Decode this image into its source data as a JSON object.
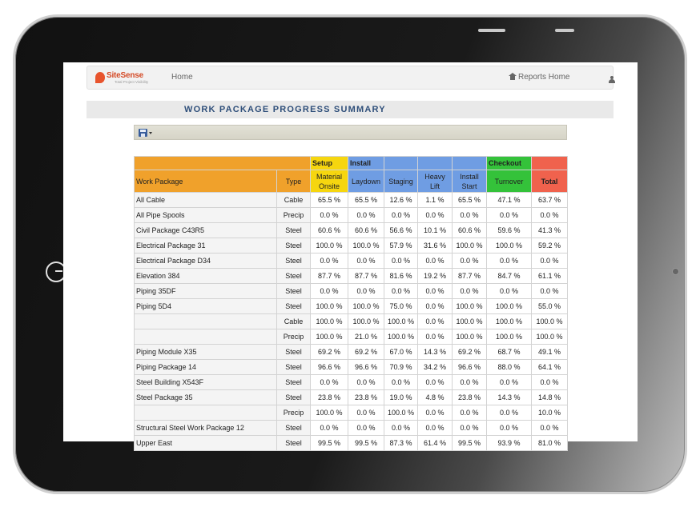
{
  "app": {
    "logo_text": "SiteSense",
    "logo_tagline": "Total Project Visibility",
    "nav_home": "Home",
    "nav_reports_home": "Reports Home"
  },
  "page": {
    "title": "WORK PACKAGE PROGRESS SUMMARY"
  },
  "toolbar": {
    "icons": [
      "save-icon",
      "chevron-down-icon"
    ]
  },
  "table": {
    "group_headers": {
      "setup": "Setup",
      "install": "Install",
      "checkout": "Checkout"
    },
    "columns": {
      "work_package": "Work Package",
      "type": "Type",
      "material_onsite": "Material Onsite",
      "laydown": "Laydown",
      "staging": "Staging",
      "heavy_lift": "Heavy Lift",
      "install_start": "Install Start",
      "turnover": "Turnover",
      "total": "Total"
    },
    "colors": {
      "orange": "#f0a12b",
      "yellow": "#f6d60f",
      "blue": "#6f9de3",
      "green": "#34c23a",
      "red": "#f0624d"
    },
    "rows": [
      {
        "name": "All Cable",
        "type": "Cable",
        "values": [
          "65.5 %",
          "65.5 %",
          "12.6 %",
          "1.1 %",
          "65.5 %",
          "47.1 %",
          "63.7 %"
        ]
      },
      {
        "name": "All Pipe Spools",
        "type": "Precip",
        "values": [
          "0.0 %",
          "0.0 %",
          "0.0 %",
          "0.0 %",
          "0.0 %",
          "0.0 %",
          "0.0 %"
        ]
      },
      {
        "name": "Civil Package C43R5",
        "type": "Steel",
        "values": [
          "60.6 %",
          "60.6 %",
          "56.6 %",
          "10.1 %",
          "60.6 %",
          "59.6 %",
          "41.3 %"
        ]
      },
      {
        "name": "Electrical Package 31",
        "type": "Steel",
        "values": [
          "100.0 %",
          "100.0 %",
          "57.9 %",
          "31.6 %",
          "100.0 %",
          "100.0 %",
          "59.2 %"
        ]
      },
      {
        "name": "Electrical Package D34",
        "type": "Steel",
        "values": [
          "0.0 %",
          "0.0 %",
          "0.0 %",
          "0.0 %",
          "0.0 %",
          "0.0 %",
          "0.0 %"
        ]
      },
      {
        "name": "Elevation 384",
        "type": "Steel",
        "values": [
          "87.7 %",
          "87.7 %",
          "81.6 %",
          "19.2 %",
          "87.7 %",
          "84.7 %",
          "61.1 %"
        ]
      },
      {
        "name": "Piping 35DF",
        "type": "Steel",
        "values": [
          "0.0 %",
          "0.0 %",
          "0.0 %",
          "0.0 %",
          "0.0 %",
          "0.0 %",
          "0.0 %"
        ]
      },
      {
        "name": "Piping 5D4",
        "type": "Steel",
        "values": [
          "100.0 %",
          "100.0 %",
          "75.0 %",
          "0.0 %",
          "100.0 %",
          "100.0 %",
          "55.0 %"
        ]
      },
      {
        "name": "",
        "type": "Cable",
        "values": [
          "100.0 %",
          "100.0 %",
          "100.0 %",
          "0.0 %",
          "100.0 %",
          "100.0 %",
          "100.0 %"
        ]
      },
      {
        "name": "",
        "type": "Precip",
        "values": [
          "100.0 %",
          "21.0 %",
          "100.0 %",
          "0.0 %",
          "100.0 %",
          "100.0 %",
          "100.0 %"
        ]
      },
      {
        "name": "Piping Module X35",
        "type": "Steel",
        "values": [
          "69.2 %",
          "69.2 %",
          "67.0 %",
          "14.3 %",
          "69.2 %",
          "68.7 %",
          "49.1 %"
        ]
      },
      {
        "name": "Piping Package 14",
        "type": "Steel",
        "values": [
          "96.6 %",
          "96.6 %",
          "70.9 %",
          "34.2 %",
          "96.6 %",
          "88.0 %",
          "64.1 %"
        ]
      },
      {
        "name": "Steel Building X543F",
        "type": "Steel",
        "values": [
          "0.0 %",
          "0.0 %",
          "0.0 %",
          "0.0 %",
          "0.0 %",
          "0.0 %",
          "0.0 %"
        ]
      },
      {
        "name": "Steel Package 35",
        "type": "Steel",
        "values": [
          "23.8 %",
          "23.8 %",
          "19.0 %",
          "4.8 %",
          "23.8 %",
          "14.3 %",
          "14.8 %"
        ]
      },
      {
        "name": "",
        "type": "Precip",
        "values": [
          "100.0 %",
          "0.0 %",
          "100.0 %",
          "0.0 %",
          "0.0 %",
          "0.0 %",
          "10.0 %"
        ]
      },
      {
        "name": "Structural Steel Work Package 12",
        "type": "Steel",
        "values": [
          "0.0 %",
          "0.0 %",
          "0.0 %",
          "0.0 %",
          "0.0 %",
          "0.0 %",
          "0.0 %"
        ]
      },
      {
        "name": "Upper East",
        "type": "Steel",
        "values": [
          "99.5 %",
          "99.5 %",
          "87.3 %",
          "61.4 %",
          "99.5 %",
          "93.9 %",
          "81.0 %"
        ]
      }
    ]
  }
}
